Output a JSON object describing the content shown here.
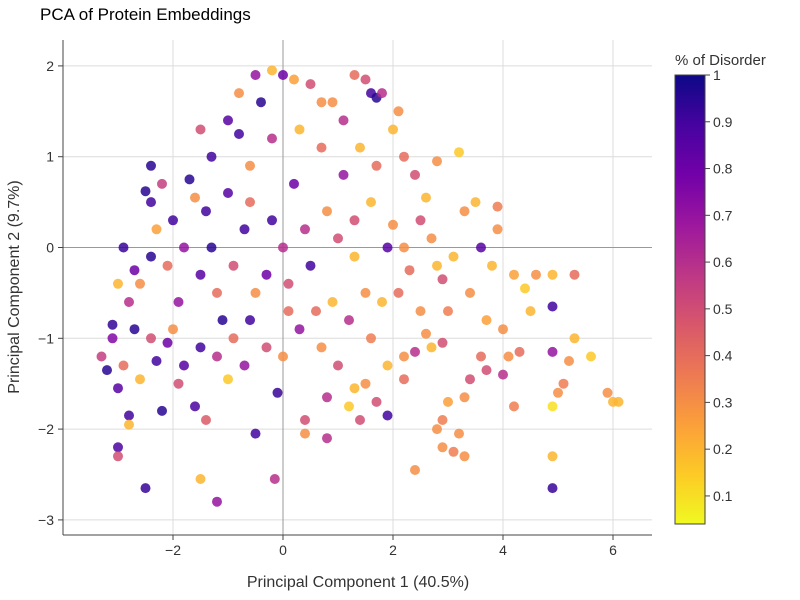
{
  "chart_data": {
    "type": "scatter",
    "title": "PCA of Protein Embeddings",
    "xlabel": "Principal Component 1 (40.5%)",
    "ylabel": "Principal Component 2 (9.7%)",
    "xlim": [
      -4,
      6.7
    ],
    "ylim": [
      -3.2,
      2.3
    ],
    "xticks": [
      -2,
      0,
      2,
      4,
      6
    ],
    "yticks": [
      -3,
      -2,
      -1,
      0,
      1,
      2
    ],
    "xtick_labels": [
      "−2",
      "0",
      "2",
      "4",
      "6"
    ],
    "ytick_labels": [
      "−3",
      "−2",
      "−1",
      "0",
      "1",
      "2"
    ],
    "grid": true,
    "zero_lines": true,
    "colorscale": "plasma (reversed)",
    "colorscale_stops": [
      "#f0f921",
      "#fdca26",
      "#fb9f3a",
      "#ed7953",
      "#d8576b",
      "#bd3786",
      "#9c179e",
      "#7201a8",
      "#46039f",
      "#0d0887"
    ],
    "colorbar": {
      "title": "% of Disorder",
      "range": [
        0.04,
        1
      ],
      "ticks": [
        0.1,
        0.2,
        0.3,
        0.4,
        0.5,
        0.6,
        0.7,
        0.8,
        0.9,
        1
      ],
      "tick_labels": [
        "0.1",
        "0.2",
        "0.3",
        "0.4",
        "0.5",
        "0.6",
        "0.7",
        "0.8",
        "0.9",
        "1"
      ]
    },
    "points": [
      [
        -2.5,
        0.62,
        0.95
      ],
      [
        -2.9,
        0.0,
        0.92
      ],
      [
        -3.1,
        -0.85,
        0.93
      ],
      [
        -3.2,
        -1.35,
        0.95
      ],
      [
        -3.0,
        -1.55,
        0.85
      ],
      [
        -2.8,
        -1.85,
        0.9
      ],
      [
        -3.0,
        -2.2,
        0.88
      ],
      [
        -2.5,
        -2.65,
        0.92
      ],
      [
        -2.2,
        -1.8,
        0.95
      ],
      [
        -1.6,
        -1.75,
        0.88
      ],
      [
        -1.2,
        -2.8,
        0.7
      ],
      [
        -0.5,
        -2.05,
        0.9
      ],
      [
        -0.1,
        -1.6,
        0.92
      ],
      [
        -0.15,
        -2.55,
        0.6
      ],
      [
        -1.5,
        -2.55,
        0.2
      ],
      [
        -3.3,
        -1.2,
        0.55
      ],
      [
        -3.0,
        -2.3,
        0.5
      ],
      [
        -2.8,
        -1.95,
        0.2
      ],
      [
        -1.4,
        -1.9,
        0.45
      ],
      [
        -1.0,
        -1.45,
        0.15
      ],
      [
        -2.4,
        0.5,
        0.9
      ],
      [
        -1.7,
        0.75,
        0.95
      ],
      [
        -1.3,
        1.0,
        0.9
      ],
      [
        -0.8,
        1.25,
        0.9
      ],
      [
        -0.5,
        1.9,
        0.7
      ],
      [
        -0.2,
        1.95,
        0.2
      ],
      [
        0.0,
        1.9,
        0.8
      ],
      [
        0.2,
        1.85,
        0.25
      ],
      [
        0.5,
        1.8,
        0.5
      ],
      [
        0.7,
        1.6,
        0.3
      ],
      [
        1.3,
        1.9,
        0.4
      ],
      [
        1.5,
        1.85,
        0.5
      ],
      [
        1.6,
        1.7,
        0.9
      ],
      [
        1.7,
        1.65,
        0.95
      ],
      [
        1.8,
        1.7,
        0.6
      ],
      [
        2.1,
        1.5,
        0.3
      ],
      [
        2.0,
        1.3,
        0.2
      ],
      [
        2.2,
        1.0,
        0.4
      ],
      [
        2.4,
        0.8,
        0.5
      ],
      [
        2.8,
        0.95,
        0.3
      ],
      [
        3.2,
        1.05,
        0.15
      ],
      [
        3.3,
        0.4,
        0.3
      ],
      [
        3.5,
        0.5,
        0.2
      ],
      [
        3.6,
        0.0,
        0.85
      ],
      [
        3.9,
        0.2,
        0.3
      ],
      [
        3.8,
        -0.2,
        0.2
      ],
      [
        4.2,
        -0.3,
        0.25
      ],
      [
        4.6,
        -0.3,
        0.3
      ],
      [
        4.4,
        -0.45,
        0.15
      ],
      [
        4.9,
        -0.3,
        0.2
      ],
      [
        5.3,
        -0.3,
        0.4
      ],
      [
        4.9,
        -0.65,
        0.9
      ],
      [
        5.3,
        -1.0,
        0.2
      ],
      [
        5.6,
        -1.2,
        0.15
      ],
      [
        5.2,
        -1.25,
        0.3
      ],
      [
        4.9,
        -1.15,
        0.7
      ],
      [
        5.1,
        -1.5,
        0.35
      ],
      [
        5.0,
        -1.6,
        0.3
      ],
      [
        4.9,
        -1.75,
        0.1
      ],
      [
        5.9,
        -1.6,
        0.3
      ],
      [
        6.0,
        -1.7,
        0.2
      ],
      [
        6.1,
        -1.7,
        0.2
      ],
      [
        4.9,
        -2.3,
        0.2
      ],
      [
        4.9,
        -2.65,
        0.92
      ],
      [
        4.2,
        -1.75,
        0.35
      ],
      [
        4.0,
        -1.4,
        0.6
      ],
      [
        4.3,
        -1.15,
        0.4
      ],
      [
        4.1,
        -1.2,
        0.3
      ],
      [
        3.7,
        -1.35,
        0.5
      ],
      [
        3.6,
        -1.2,
        0.4
      ],
      [
        3.4,
        -1.45,
        0.5
      ],
      [
        3.3,
        -1.65,
        0.3
      ],
      [
        3.0,
        -1.7,
        0.25
      ],
      [
        2.9,
        -1.9,
        0.35
      ],
      [
        2.8,
        -2.0,
        0.3
      ],
      [
        3.2,
        -2.05,
        0.3
      ],
      [
        3.3,
        -2.3,
        0.3
      ],
      [
        3.1,
        -2.25,
        0.35
      ],
      [
        2.9,
        -2.2,
        0.3
      ],
      [
        2.4,
        -2.45,
        0.3
      ],
      [
        1.9,
        -1.85,
        0.9
      ],
      [
        1.7,
        -1.7,
        0.5
      ],
      [
        1.2,
        -1.75,
        0.15
      ],
      [
        1.4,
        -1.9,
        0.5
      ],
      [
        0.8,
        -1.65,
        0.6
      ],
      [
        0.4,
        -1.9,
        0.5
      ],
      [
        0.4,
        -2.05,
        0.3
      ],
      [
        0.8,
        -2.1,
        0.6
      ],
      [
        1.3,
        -1.55,
        0.2
      ],
      [
        1.5,
        -1.5,
        0.3
      ],
      [
        2.4,
        -1.15,
        0.6
      ],
      [
        2.2,
        -1.2,
        0.3
      ],
      [
        2.7,
        -1.1,
        0.2
      ],
      [
        2.9,
        -1.05,
        0.5
      ],
      [
        2.6,
        -0.95,
        0.3
      ],
      [
        3.0,
        -0.7,
        0.35
      ],
      [
        2.9,
        -0.35,
        0.5
      ],
      [
        2.8,
        -0.2,
        0.2
      ],
      [
        2.3,
        -0.25,
        0.4
      ],
      [
        2.2,
        0.0,
        0.3
      ],
      [
        2.0,
        0.25,
        0.3
      ],
      [
        1.9,
        0.0,
        0.85
      ],
      [
        1.3,
        -0.1,
        0.2
      ],
      [
        1.0,
        0.1,
        0.5
      ],
      [
        0.4,
        0.2,
        0.6
      ],
      [
        -0.2,
        0.3,
        0.9
      ],
      [
        -0.6,
        0.5,
        0.4
      ],
      [
        -1.0,
        0.6,
        0.85
      ],
      [
        -1.4,
        0.4,
        0.9
      ],
      [
        -1.8,
        0.0,
        0.7
      ],
      [
        -2.1,
        -0.2,
        0.4
      ],
      [
        -2.4,
        -0.1,
        0.95
      ],
      [
        -2.6,
        -0.4,
        0.3
      ],
      [
        -2.8,
        -0.6,
        0.6
      ],
      [
        -3.0,
        -0.4,
        0.2
      ],
      [
        -2.7,
        -0.9,
        0.95
      ],
      [
        -2.4,
        -1.0,
        0.5
      ],
      [
        -2.1,
        -1.05,
        0.8
      ],
      [
        -1.8,
        -1.3,
        0.85
      ],
      [
        -1.5,
        -1.1,
        0.9
      ],
      [
        -1.2,
        -1.2,
        0.6
      ],
      [
        -0.9,
        -1.0,
        0.4
      ],
      [
        -0.6,
        -0.8,
        0.9
      ],
      [
        -0.3,
        -1.1,
        0.5
      ],
      [
        0.0,
        -1.2,
        0.3
      ],
      [
        0.3,
        -0.9,
        0.7
      ],
      [
        0.6,
        -0.7,
        0.4
      ],
      [
        0.9,
        -0.6,
        0.2
      ],
      [
        1.2,
        -0.8,
        0.6
      ],
      [
        1.5,
        -0.5,
        0.3
      ],
      [
        1.8,
        -0.6,
        0.2
      ],
      [
        2.1,
        -0.5,
        0.4
      ],
      [
        -0.3,
        -0.3,
        0.8
      ],
      [
        0.1,
        -0.4,
        0.5
      ],
      [
        0.5,
        -0.2,
        0.9
      ],
      [
        -0.6,
        0.9,
        0.3
      ],
      [
        -0.2,
        1.2,
        0.6
      ],
      [
        0.3,
        1.3,
        0.2
      ],
      [
        0.7,
        1.1,
        0.4
      ],
      [
        1.1,
        0.8,
        0.7
      ],
      [
        1.4,
        1.1,
        0.2
      ],
      [
        -1.0,
        1.4,
        0.85
      ],
      [
        -0.7,
        0.2,
        0.9
      ],
      [
        -1.3,
        0.0,
        0.95
      ],
      [
        -0.9,
        -0.2,
        0.5
      ],
      [
        -1.6,
        0.55,
        0.3
      ],
      [
        -2.0,
        0.3,
        0.9
      ],
      [
        -2.2,
        0.7,
        0.55
      ],
      [
        -1.9,
        -0.6,
        0.7
      ],
      [
        -1.2,
        -0.5,
        0.4
      ],
      [
        0.9,
        1.6,
        0.3
      ],
      [
        1.1,
        1.4,
        0.6
      ],
      [
        0.2,
        0.7,
        0.8
      ],
      [
        0.8,
        0.4,
        0.3
      ],
      [
        1.6,
        0.5,
        0.2
      ],
      [
        2.5,
        0.3,
        0.5
      ],
      [
        2.7,
        0.1,
        0.3
      ],
      [
        3.1,
        -0.1,
        0.2
      ],
      [
        3.4,
        -0.5,
        0.3
      ],
      [
        3.7,
        -0.8,
        0.25
      ],
      [
        4.0,
        -0.9,
        0.3
      ],
      [
        4.5,
        -0.7,
        0.2
      ],
      [
        3.9,
        0.45,
        0.35
      ],
      [
        2.6,
        0.55,
        0.2
      ],
      [
        1.7,
        0.9,
        0.4
      ],
      [
        -0.4,
        1.6,
        0.95
      ],
      [
        -0.8,
        1.7,
        0.3
      ],
      [
        -1.5,
        1.3,
        0.5
      ],
      [
        -2.3,
        0.2,
        0.25
      ],
      [
        -2.7,
        -0.25,
        0.8
      ],
      [
        -3.1,
        -1.0,
        0.75
      ],
      [
        -2.9,
        -1.3,
        0.4
      ],
      [
        -2.6,
        -1.45,
        0.2
      ],
      [
        -2.3,
        -1.25,
        0.9
      ],
      [
        -1.9,
        -1.5,
        0.5
      ],
      [
        -1.1,
        -0.8,
        0.95
      ],
      [
        -0.7,
        -1.3,
        0.7
      ],
      [
        0.1,
        -0.7,
        0.4
      ],
      [
        0.7,
        -1.1,
        0.3
      ],
      [
        1.0,
        -1.3,
        0.5
      ],
      [
        1.6,
        -1.0,
        0.35
      ],
      [
        1.9,
        -1.3,
        0.2
      ],
      [
        2.2,
        -1.45,
        0.4
      ],
      [
        2.5,
        -0.7,
        0.3
      ],
      [
        1.3,
        0.3,
        0.5
      ],
      [
        0.0,
        0.0,
        0.6
      ],
      [
        -0.5,
        -0.5,
        0.3
      ],
      [
        -1.5,
        -0.3,
        0.85
      ],
      [
        -2.0,
        -0.9,
        0.3
      ],
      [
        -2.4,
        0.9,
        0.95
      ]
    ]
  }
}
